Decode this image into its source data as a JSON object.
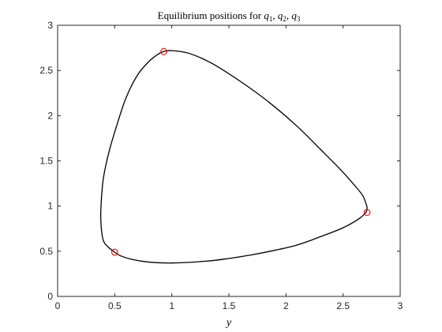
{
  "chart_data": {
    "type": "line",
    "title_text": "Equilibrium positions for ",
    "title_symbols": [
      {
        "base": "q",
        "sub": "1",
        "sep": ", "
      },
      {
        "base": "q",
        "sub": "2",
        "sep": ", "
      },
      {
        "base": "q",
        "sub": "3",
        "sep": ""
      }
    ],
    "xlabel": "y",
    "ylabel": "",
    "xlim": [
      0,
      3
    ],
    "ylim": [
      0,
      3
    ],
    "xticks": [
      "0",
      "0.5",
      "1",
      "1.5",
      "2",
      "2.5",
      "3"
    ],
    "yticks": [
      "0",
      "0.5",
      "1",
      "1.5",
      "2",
      "2.5",
      "3"
    ],
    "grid": false,
    "series": [
      {
        "style": "line",
        "color": "#000000",
        "closed": true,
        "points": [
          [
            0.93,
            2.71
          ],
          [
            1.0,
            2.72
          ],
          [
            1.15,
            2.69
          ],
          [
            1.35,
            2.58
          ],
          [
            1.6,
            2.38
          ],
          [
            1.85,
            2.15
          ],
          [
            2.1,
            1.88
          ],
          [
            2.3,
            1.63
          ],
          [
            2.48,
            1.4
          ],
          [
            2.6,
            1.23
          ],
          [
            2.67,
            1.12
          ],
          [
            2.7,
            1.03
          ],
          [
            2.71,
            0.98
          ],
          [
            2.7,
            0.93
          ],
          [
            2.64,
            0.86
          ],
          [
            2.5,
            0.76
          ],
          [
            2.3,
            0.66
          ],
          [
            2.1,
            0.57
          ],
          [
            1.9,
            0.51
          ],
          [
            1.7,
            0.46
          ],
          [
            1.5,
            0.42
          ],
          [
            1.3,
            0.39
          ],
          [
            1.0,
            0.37
          ],
          [
            0.8,
            0.38
          ],
          [
            0.65,
            0.41
          ],
          [
            0.55,
            0.45
          ],
          [
            0.5,
            0.49
          ],
          [
            0.44,
            0.55
          ],
          [
            0.4,
            0.62
          ],
          [
            0.38,
            0.8
          ],
          [
            0.38,
            1.0
          ],
          [
            0.4,
            1.3
          ],
          [
            0.45,
            1.6
          ],
          [
            0.52,
            1.9
          ],
          [
            0.6,
            2.2
          ],
          [
            0.7,
            2.45
          ],
          [
            0.8,
            2.6
          ],
          [
            0.88,
            2.68
          ]
        ]
      },
      {
        "style": "markers",
        "marker": "circle",
        "color": "#ff0000",
        "points": [
          [
            0.93,
            2.71
          ],
          [
            2.71,
            0.93
          ],
          [
            0.5,
            0.49
          ]
        ]
      }
    ]
  }
}
